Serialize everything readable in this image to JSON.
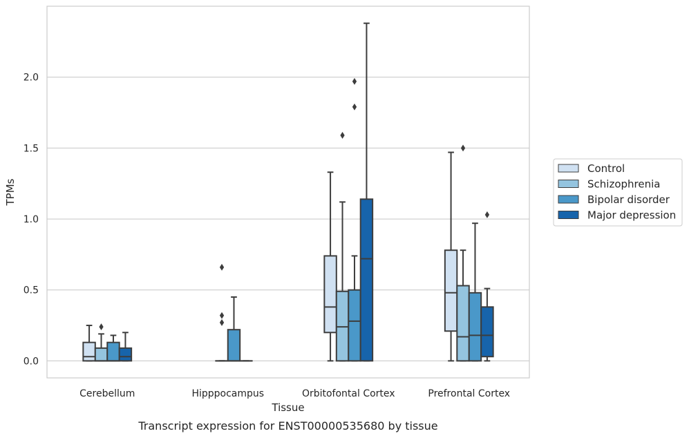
{
  "chart_data": {
    "type": "box",
    "title": "",
    "caption": "Transcript expression for ENST00000535680 by tissue",
    "xlabel": "Tissue",
    "ylabel": "TPMs",
    "ylim": [
      -0.12,
      2.5
    ],
    "yticks": [
      0.0,
      0.5,
      1.0,
      1.5,
      2.0
    ],
    "ytick_labels": [
      "0.0",
      "0.5",
      "1.0",
      "1.5",
      "2.0"
    ],
    "grid": "horizontal",
    "legend_position": "right",
    "categories": [
      "Cerebellum",
      "Hipppocampus",
      "Orbitofontal Cortex",
      "Prefrontal Cortex"
    ],
    "series": [
      {
        "name": "Control",
        "color": "#d0e1f2",
        "boxes": [
          {
            "whislo": 0.0,
            "q1": 0.0,
            "med": 0.03,
            "q3": 0.13,
            "whishi": 0.25,
            "fliers": []
          },
          null,
          {
            "whislo": 0.0,
            "q1": 0.2,
            "med": 0.38,
            "q3": 0.74,
            "whishi": 1.33,
            "fliers": []
          },
          {
            "whislo": 0.0,
            "q1": 0.21,
            "med": 0.48,
            "q3": 0.78,
            "whishi": 1.47,
            "fliers": []
          }
        ]
      },
      {
        "name": "Schizophrenia",
        "color": "#94c4df",
        "boxes": [
          {
            "whislo": 0.0,
            "q1": 0.0,
            "med": 0.0,
            "q3": 0.09,
            "whishi": 0.19,
            "fliers": [
              0.24
            ]
          },
          {
            "whislo": 0.0,
            "q1": 0.0,
            "med": 0.0,
            "q3": 0.0,
            "whishi": 0.0,
            "fliers": [
              0.27,
              0.32,
              0.66
            ]
          },
          {
            "whislo": 0.0,
            "q1": 0.0,
            "med": 0.24,
            "q3": 0.49,
            "whishi": 1.12,
            "fliers": [
              1.59
            ]
          },
          {
            "whislo": 0.0,
            "q1": 0.0,
            "med": 0.17,
            "q3": 0.53,
            "whishi": 0.78,
            "fliers": [
              1.5
            ]
          }
        ]
      },
      {
        "name": "Bipolar disorder",
        "color": "#4a98c9",
        "boxes": [
          {
            "whislo": 0.0,
            "q1": 0.0,
            "med": 0.0,
            "q3": 0.13,
            "whishi": 0.18,
            "fliers": []
          },
          {
            "whislo": 0.0,
            "q1": 0.0,
            "med": 0.0,
            "q3": 0.22,
            "whishi": 0.45,
            "fliers": []
          },
          {
            "whislo": 0.0,
            "q1": 0.0,
            "med": 0.28,
            "q3": 0.5,
            "whishi": 0.74,
            "fliers": [
              1.79,
              1.97
            ]
          },
          {
            "whislo": 0.0,
            "q1": 0.0,
            "med": 0.18,
            "q3": 0.48,
            "whishi": 0.97,
            "fliers": []
          }
        ]
      },
      {
        "name": "Major depression",
        "color": "#1764ab",
        "boxes": [
          {
            "whislo": 0.0,
            "q1": 0.0,
            "med": 0.03,
            "q3": 0.09,
            "whishi": 0.2,
            "fliers": []
          },
          {
            "whislo": 0.0,
            "q1": 0.0,
            "med": 0.0,
            "q3": 0.0,
            "whishi": 0.0,
            "fliers": []
          },
          {
            "whislo": 0.0,
            "q1": 0.0,
            "med": 0.72,
            "q3": 1.14,
            "whishi": 2.38,
            "fliers": []
          },
          {
            "whislo": 0.0,
            "q1": 0.03,
            "med": 0.18,
            "q3": 0.38,
            "whishi": 0.51,
            "fliers": [
              1.03
            ]
          }
        ]
      }
    ]
  }
}
